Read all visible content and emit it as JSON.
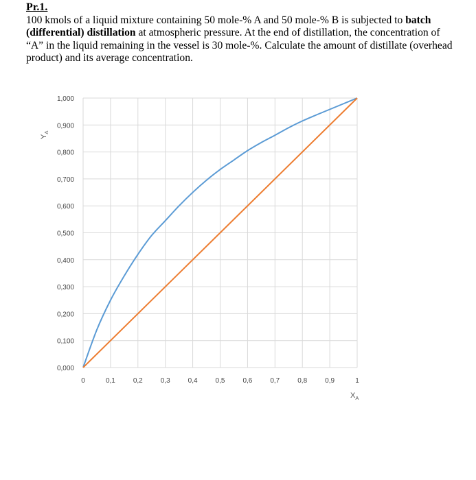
{
  "problem": {
    "title": "Pr.1.",
    "text_1": "100 kmols of a liquid mixture containing 50 mole-% A and 50 mole-% B is subjected to ",
    "bold_1": "batch (differential) distillation",
    "text_2": " at atmospheric pressure.  At the end of distillation, the concentration of “A” in the liquid remaining in the vessel is 30 mole-%.  Calculate the amount of distillate (overhead product) and its average concentration."
  },
  "chart_data": {
    "type": "line",
    "xlabel_main": "X",
    "xlabel_sub": "A",
    "ylabel_main": "Y",
    "ylabel_sub": "A",
    "xlim": [
      0,
      1
    ],
    "ylim": [
      0,
      1
    ],
    "grid": true,
    "x_ticks": [
      "0",
      "0,1",
      "0,2",
      "0,3",
      "0,4",
      "0,5",
      "0,6",
      "0,7",
      "0,8",
      "0,9",
      "1"
    ],
    "y_ticks": [
      "0,000",
      "0,100",
      "0,200",
      "0,300",
      "0,400",
      "0,500",
      "0,600",
      "0,700",
      "0,800",
      "0,900",
      "1,000"
    ],
    "series": [
      {
        "color": "#5b9bd5",
        "x": [
          0,
          0.05,
          0.1,
          0.15,
          0.2,
          0.25,
          0.3,
          0.35,
          0.4,
          0.45,
          0.5,
          0.55,
          0.6,
          0.65,
          0.7,
          0.75,
          0.8,
          0.85,
          0.9,
          0.95,
          1.0
        ],
        "y": [
          0,
          0.14,
          0.25,
          0.34,
          0.42,
          0.49,
          0.545,
          0.6,
          0.65,
          0.695,
          0.735,
          0.77,
          0.805,
          0.835,
          0.862,
          0.89,
          0.915,
          0.937,
          0.958,
          0.979,
          1.0
        ]
      },
      {
        "color": "#ed7d31",
        "x": [
          0,
          1
        ],
        "y": [
          0,
          1
        ]
      }
    ]
  }
}
